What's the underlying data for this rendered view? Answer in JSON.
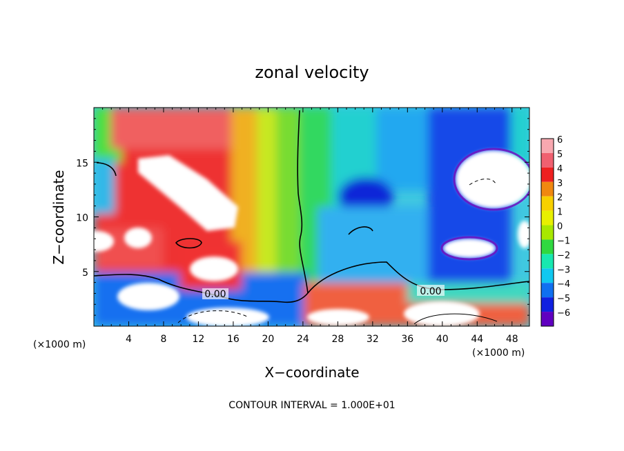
{
  "chart_data": {
    "type": "heatmap",
    "title": "zonal velocity",
    "xlabel": "X−coordinate",
    "ylabel": "Z−coordinate",
    "x_unit_left": "(×1000 m)",
    "x_unit_right": "(×1000 m)",
    "xlim": [
      0,
      50
    ],
    "ylim": [
      0,
      20
    ],
    "x_ticks": [
      4,
      8,
      12,
      16,
      20,
      24,
      28,
      32,
      36,
      40,
      44,
      48
    ],
    "x_tick_labels": [
      "4",
      "8",
      "12",
      "16",
      "20",
      "24",
      "28",
      "32",
      "36",
      "40",
      "44",
      "48"
    ],
    "y_ticks": [
      5,
      10,
      15
    ],
    "y_tick_labels": [
      "5",
      "10",
      "15"
    ],
    "colorbar": {
      "levels": [
        6,
        5,
        4,
        3,
        2,
        1,
        0,
        -1,
        -2,
        -3,
        -4,
        -5,
        -6
      ],
      "labels": [
        "6",
        "5",
        "4",
        "3",
        "2",
        "1",
        "0",
        "−1",
        "−2",
        "−3",
        "−4",
        "−5",
        "−6"
      ],
      "colors": [
        "#f8a8b0",
        "#f06070",
        "#ee2020",
        "#f08810",
        "#f8d000",
        "#e8f000",
        "#a8e800",
        "#30d840",
        "#18e8b0",
        "#10c8f0",
        "#1070f0",
        "#1020e0",
        "#6000c0"
      ]
    },
    "contour_labels": [
      {
        "x": 15.4,
        "z": 2.8,
        "text": "0.00"
      },
      {
        "x": 38.8,
        "z": 3.1,
        "text": "0.00"
      }
    ],
    "footer": "CONTOUR INTERVAL = 1.000E+01"
  }
}
